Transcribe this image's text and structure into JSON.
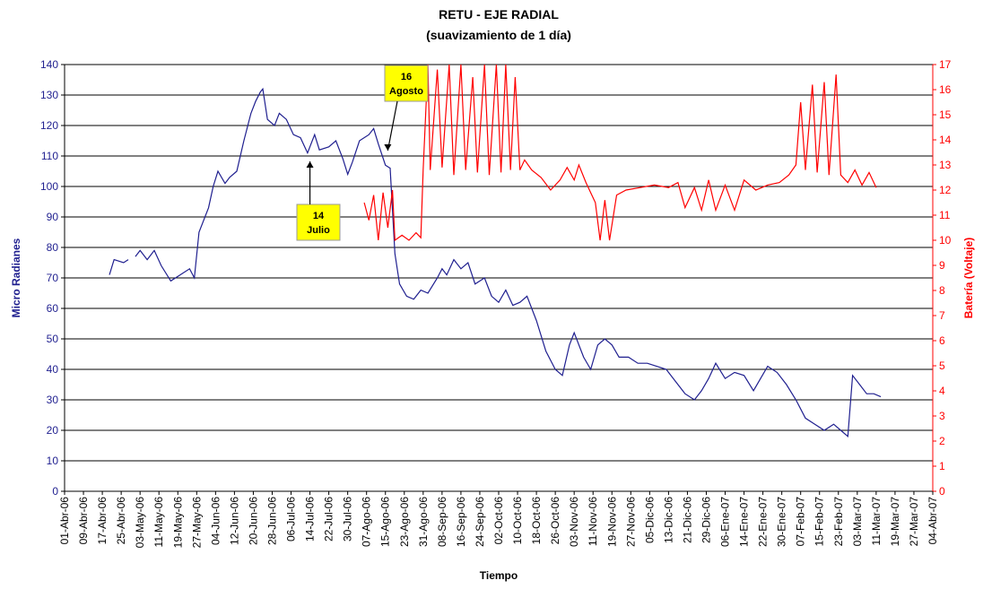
{
  "chart_data": {
    "type": "line",
    "title": "RETU -  EJE RADIAL",
    "subtitle": "(suavizamiento de 1 día)",
    "x_label": "Tiempo",
    "y_label": "Micro Radianes",
    "y2_label": "Batería (Voltaje)",
    "xlim": [
      "2006-04-01",
      "2007-04-04"
    ],
    "xticks": [
      {
        "value": "2006-04-01",
        "label": "01-Abr-06"
      },
      {
        "value": "2006-04-09",
        "label": "09-Abr-06"
      },
      {
        "value": "2006-04-17",
        "label": "17-Abr-06"
      },
      {
        "value": "2006-04-25",
        "label": "25-Abr-06"
      },
      {
        "value": "2006-05-03",
        "label": "03-May-06"
      },
      {
        "value": "2006-05-11",
        "label": "11-May-06"
      },
      {
        "value": "2006-05-19",
        "label": "19-May-06"
      },
      {
        "value": "2006-05-27",
        "label": "27-May-06"
      },
      {
        "value": "2006-06-04",
        "label": "04-Jun-06"
      },
      {
        "value": "2006-06-12",
        "label": "12-Jun-06"
      },
      {
        "value": "2006-06-20",
        "label": "20-Jun-06"
      },
      {
        "value": "2006-06-28",
        "label": "28-Jun-06"
      },
      {
        "value": "2006-07-06",
        "label": "06-Jul-06"
      },
      {
        "value": "2006-07-14",
        "label": "14-Jul-06"
      },
      {
        "value": "2006-07-22",
        "label": "22-Jul-06"
      },
      {
        "value": "2006-07-30",
        "label": "30-Jul-06"
      },
      {
        "value": "2006-08-07",
        "label": "07-Ago-06"
      },
      {
        "value": "2006-08-15",
        "label": "15-Ago-06"
      },
      {
        "value": "2006-08-23",
        "label": "23-Ago-06"
      },
      {
        "value": "2006-08-31",
        "label": "31-Ago-06"
      },
      {
        "value": "2006-09-08",
        "label": "08-Sep-06"
      },
      {
        "value": "2006-09-16",
        "label": "16-Sep-06"
      },
      {
        "value": "2006-09-24",
        "label": "24-Sep-06"
      },
      {
        "value": "2006-10-02",
        "label": "02-Oct-06"
      },
      {
        "value": "2006-10-10",
        "label": "10-Oct-06"
      },
      {
        "value": "2006-10-18",
        "label": "18-Oct-06"
      },
      {
        "value": "2006-10-26",
        "label": "26-Oct-06"
      },
      {
        "value": "2006-11-03",
        "label": "03-Nov-06"
      },
      {
        "value": "2006-11-11",
        "label": "11-Nov-06"
      },
      {
        "value": "2006-11-19",
        "label": "19-Nov-06"
      },
      {
        "value": "2006-11-27",
        "label": "27-Nov-06"
      },
      {
        "value": "2006-12-05",
        "label": "05-Dic-06"
      },
      {
        "value": "2006-12-13",
        "label": "13-Dic-06"
      },
      {
        "value": "2006-12-21",
        "label": "21-Dic-06"
      },
      {
        "value": "2006-12-29",
        "label": "29-Dic-06"
      },
      {
        "value": "2007-01-06",
        "label": "06-Ene-07"
      },
      {
        "value": "2007-01-14",
        "label": "14-Ene-07"
      },
      {
        "value": "2007-01-22",
        "label": "22-Ene-07"
      },
      {
        "value": "2007-01-30",
        "label": "30-Ene-07"
      },
      {
        "value": "2007-02-07",
        "label": "07-Feb-07"
      },
      {
        "value": "2007-02-15",
        "label": "15-Feb-07"
      },
      {
        "value": "2007-02-23",
        "label": "23-Feb-07"
      },
      {
        "value": "2007-03-03",
        "label": "03-Mar-07"
      },
      {
        "value": "2007-03-11",
        "label": "11-Mar-07"
      },
      {
        "value": "2007-03-19",
        "label": "19-Mar-07"
      },
      {
        "value": "2007-03-27",
        "label": "27-Mar-07"
      },
      {
        "value": "2007-04-04",
        "label": "04-Abr-07"
      }
    ],
    "ylim": [
      0,
      140
    ],
    "yticks": [
      0,
      10,
      20,
      30,
      40,
      50,
      60,
      70,
      80,
      90,
      100,
      110,
      120,
      130,
      140
    ],
    "y2lim": [
      0,
      17
    ],
    "y2ticks": [
      0,
      1,
      2,
      3,
      4,
      5,
      6,
      7,
      8,
      9,
      10,
      11,
      12,
      13,
      14,
      15,
      16,
      17
    ],
    "grid": true,
    "series": [
      {
        "name": "Micro Radianes",
        "color": "#1f1f8f",
        "axis": "y",
        "x": [
          "2006-04-20",
          "2006-04-22",
          "2006-04-26",
          "2006-04-28",
          "2006-04-30",
          "2006-05-01",
          "2006-05-03",
          "2006-05-06",
          "2006-05-09",
          "2006-05-12",
          "2006-05-16",
          "2006-05-20",
          "2006-05-24",
          "2006-05-26",
          "2006-05-28",
          "2006-06-01",
          "2006-06-03",
          "2006-06-05",
          "2006-06-08",
          "2006-06-10",
          "2006-06-13",
          "2006-06-16",
          "2006-06-19",
          "2006-06-21",
          "2006-06-23",
          "2006-06-24",
          "2006-06-26",
          "2006-06-29",
          "2006-07-01",
          "2006-07-04",
          "2006-07-07",
          "2006-07-10",
          "2006-07-13",
          "2006-07-16",
          "2006-07-18",
          "2006-07-22",
          "2006-07-25",
          "2006-07-28",
          "2006-07-30",
          "2006-08-01",
          "2006-08-04",
          "2006-08-08",
          "2006-08-10",
          "2006-08-12",
          "2006-08-15",
          "2006-08-17",
          "2006-08-19",
          "2006-08-21",
          "2006-08-24",
          "2006-08-27",
          "2006-08-30",
          "2006-09-02",
          "2006-09-06",
          "2006-09-08",
          "2006-09-10",
          "2006-09-13",
          "2006-09-16",
          "2006-09-19",
          "2006-09-22",
          "2006-09-26",
          "2006-09-29",
          "2006-10-02",
          "2006-10-05",
          "2006-10-08",
          "2006-10-11",
          "2006-10-14",
          "2006-10-18",
          "2006-10-22",
          "2006-10-26",
          "2006-10-29",
          "2006-11-01",
          "2006-11-03",
          "2006-11-07",
          "2006-11-10",
          "2006-11-13",
          "2006-11-16",
          "2006-11-19",
          "2006-11-22",
          "2006-11-26",
          "2006-11-30",
          "2006-12-04",
          "2006-12-08",
          "2006-12-12",
          "2006-12-16",
          "2006-12-20",
          "2006-12-24",
          "2006-12-27",
          "2006-12-30",
          "2007-01-02",
          "2007-01-06",
          "2007-01-10",
          "2007-01-14",
          "2007-01-18",
          "2007-01-21",
          "2007-01-24",
          "2007-01-28",
          "2007-02-01",
          "2007-02-05",
          "2007-02-09",
          "2007-02-13",
          "2007-02-17",
          "2007-02-21",
          "2007-02-24",
          "2007-02-27",
          "2007-03-01",
          "2007-03-04",
          "2007-03-07",
          "2007-03-10",
          "2007-03-13"
        ],
        "values": [
          71,
          76,
          75,
          76,
          null,
          77,
          79,
          76,
          79,
          74,
          69,
          71,
          73,
          70,
          85,
          93,
          100,
          105,
          101,
          103,
          105,
          115,
          124,
          128,
          131,
          132,
          122,
          120,
          124,
          122,
          117,
          116,
          111,
          117,
          112,
          113,
          115,
          109,
          104,
          108,
          115,
          117,
          119,
          114,
          107,
          106,
          78,
          68,
          64,
          63,
          66,
          65,
          70,
          73,
          71,
          76,
          73,
          75,
          68,
          70,
          64,
          62,
          66,
          61,
          62,
          64,
          56,
          46,
          40,
          38,
          48,
          52,
          44,
          40,
          48,
          50,
          48,
          44,
          44,
          42,
          42,
          41,
          40,
          36,
          32,
          30,
          33,
          37,
          42,
          37,
          39,
          38,
          33,
          37,
          41,
          39,
          35,
          30,
          24,
          22,
          20,
          22,
          20,
          18,
          38,
          35,
          32,
          32,
          31
        ]
      },
      {
        "name": "Batería (Voltaje)",
        "color": "#ff0000",
        "axis": "y2",
        "x": [
          "2006-08-06",
          "2006-08-08",
          "2006-08-10",
          "2006-08-12",
          "2006-08-14",
          "2006-08-16",
          "2006-08-18",
          "2006-08-19",
          "2006-08-22",
          "2006-08-25",
          "2006-08-28",
          "2006-08-30",
          "2006-08-31",
          "2006-09-02",
          "2006-09-03",
          "2006-09-06",
          "2006-09-08",
          "2006-09-11",
          "2006-09-13",
          "2006-09-16",
          "2006-09-18",
          "2006-09-21",
          "2006-09-23",
          "2006-09-26",
          "2006-09-28",
          "2006-10-01",
          "2006-10-03",
          "2006-10-05",
          "2006-10-07",
          "2006-10-09",
          "2006-10-11",
          "2006-10-13",
          "2006-10-16",
          "2006-10-20",
          "2006-10-24",
          "2006-10-28",
          "2006-10-31",
          "2006-11-03",
          "2006-11-05",
          "2006-11-08",
          "2006-11-12",
          "2006-11-14",
          "2006-11-16",
          "2006-11-18",
          "2006-11-21",
          "2006-11-25",
          "2006-12-01",
          "2006-12-07",
          "2006-12-13",
          "2006-12-17",
          "2006-12-20",
          "2006-12-24",
          "2006-12-27",
          "2006-12-30",
          "2007-01-02",
          "2007-01-06",
          "2007-01-10",
          "2007-01-14",
          "2007-01-19",
          "2007-01-24",
          "2007-01-29",
          "2007-02-02",
          "2007-02-05",
          "2007-02-07",
          "2007-02-09",
          "2007-02-12",
          "2007-02-14",
          "2007-02-17",
          "2007-02-19",
          "2007-02-22",
          "2007-02-24",
          "2007-02-27",
          "2007-03-02",
          "2007-03-05",
          "2007-03-08",
          "2007-03-11"
        ],
        "values": [
          11.5,
          10.8,
          11.8,
          10,
          11.9,
          10.5,
          12,
          10,
          10.2,
          10,
          10.3,
          10.1,
          12.8,
          17,
          12.8,
          16.8,
          12.9,
          17,
          12.6,
          17,
          12.8,
          16.5,
          12.7,
          17,
          12.6,
          17,
          12.7,
          17,
          12.8,
          16.5,
          12.8,
          13.2,
          12.8,
          12.5,
          12.0,
          12.4,
          12.9,
          12.4,
          13.0,
          12.3,
          11.5,
          10.0,
          11.6,
          10.0,
          11.8,
          12.0,
          12.1,
          12.2,
          12.1,
          12.3,
          11.3,
          12.1,
          11.2,
          12.4,
          11.2,
          12.2,
          11.2,
          12.4,
          12.0,
          12.2,
          12.3,
          12.6,
          13.0,
          15.5,
          12.8,
          16.2,
          12.7,
          16.3,
          12.6,
          16.6,
          12.6,
          12.3,
          12.8,
          12.2,
          12.7,
          12.1
        ]
      }
    ],
    "annotations": [
      {
        "lines": [
          "16",
          "Agosto"
        ],
        "x": "2006-08-16",
        "y": 110
      },
      {
        "lines": [
          "14",
          "Julio"
        ],
        "x": "2006-07-14",
        "y": 110
      }
    ]
  }
}
